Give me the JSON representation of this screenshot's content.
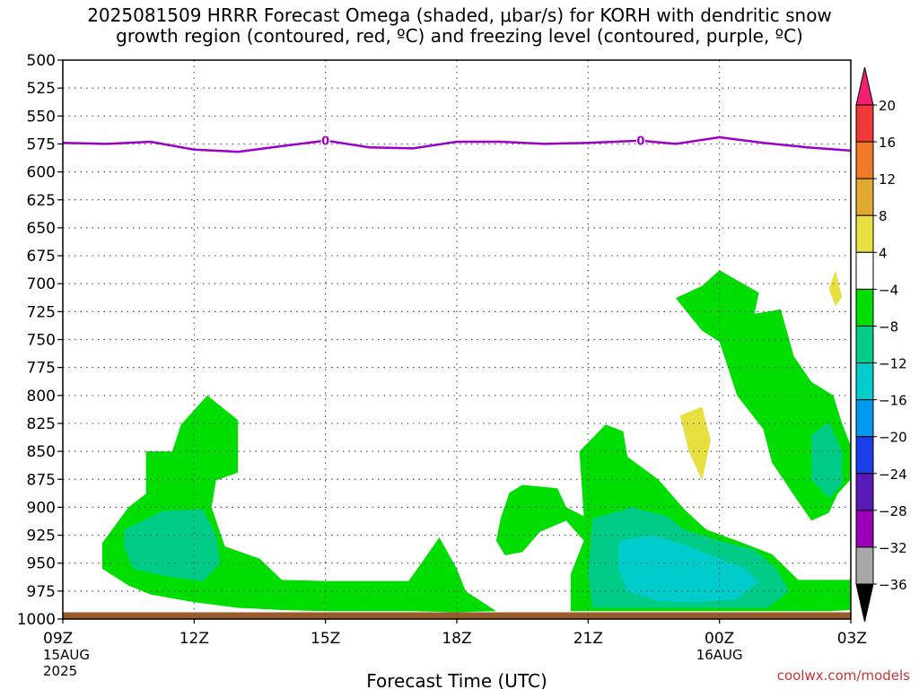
{
  "chart_data": {
    "type": "contour",
    "title_line1": "2025081509 HRRR Forecast Omega (shaded, μbar/s) for KORH with dendritic snow",
    "title_line2": "growth region (contoured, red, ºC) and freezing level (contoured, purple, ºC)",
    "xlabel": "Forecast Time (UTC)",
    "y_axis": {
      "reversed": true,
      "ylim": [
        1000,
        500
      ],
      "ticks": [
        500,
        525,
        550,
        575,
        600,
        625,
        650,
        675,
        700,
        725,
        750,
        775,
        800,
        825,
        850,
        875,
        900,
        925,
        950,
        975,
        1000
      ]
    },
    "x_axis": {
      "range_hours": [
        0,
        18
      ],
      "ticks": [
        {
          "hour": 0,
          "label": "09Z",
          "sub1": "15AUG",
          "sub2": "2025"
        },
        {
          "hour": 3,
          "label": "12Z",
          "sub1": "",
          "sub2": ""
        },
        {
          "hour": 6,
          "label": "15Z",
          "sub1": "",
          "sub2": ""
        },
        {
          "hour": 9,
          "label": "18Z",
          "sub1": "",
          "sub2": ""
        },
        {
          "hour": 12,
          "label": "21Z",
          "sub1": "",
          "sub2": ""
        },
        {
          "hour": 15,
          "label": "00Z",
          "sub1": "16AUG",
          "sub2": ""
        },
        {
          "hour": 18,
          "label": "03Z",
          "sub1": "",
          "sub2": ""
        }
      ]
    },
    "grid": true,
    "colorbar": {
      "labels": [
        20,
        16,
        12,
        8,
        4,
        -4,
        -8,
        -12,
        -16,
        -20,
        -24,
        -28,
        -32,
        -36
      ],
      "colors": [
        "#f02070",
        "#f03a3a",
        "#f07a2a",
        "#e0aa30",
        "#e8e040",
        "#ffffff",
        "#00dd00",
        "#00cc88",
        "#00cccc",
        "#0099ee",
        "#1a3ee8",
        "#5a1ab8",
        "#9a00b8",
        "#a8a8a8",
        "#000000"
      ]
    },
    "freezing_level": {
      "color": "#9a00c8",
      "label": "0",
      "label_hours": [
        6.0,
        13.2
      ],
      "points": [
        [
          0,
          574
        ],
        [
          1.0,
          575
        ],
        [
          2.0,
          573
        ],
        [
          3.0,
          580
        ],
        [
          4.0,
          582
        ],
        [
          5.0,
          577
        ],
        [
          6.0,
          572
        ],
        [
          7.0,
          578
        ],
        [
          8.0,
          579
        ],
        [
          9.0,
          573
        ],
        [
          10.0,
          573
        ],
        [
          11.0,
          575
        ],
        [
          12.0,
          574
        ],
        [
          13.2,
          572
        ],
        [
          14.0,
          575
        ],
        [
          15.0,
          569
        ],
        [
          16.0,
          574
        ],
        [
          17.0,
          578
        ],
        [
          18.0,
          581
        ]
      ]
    },
    "ground": {
      "color": "#9a5a2a",
      "from_pressure": 994,
      "to_pressure": 1000
    },
    "regions": [
      {
        "level": "-4 to -8",
        "color": "#00dd00",
        "points": [
          [
            0.9,
            932
          ],
          [
            1.5,
            900
          ],
          [
            1.9,
            888
          ],
          [
            1.9,
            850
          ],
          [
            2.5,
            850
          ],
          [
            2.7,
            826
          ],
          [
            3.3,
            800
          ],
          [
            4.0,
            822
          ],
          [
            4.0,
            869
          ],
          [
            3.5,
            876
          ],
          [
            3.4,
            900
          ],
          [
            3.7,
            935
          ],
          [
            4.5,
            946
          ],
          [
            5.0,
            965
          ],
          [
            6.0,
            966
          ],
          [
            7.0,
            966
          ],
          [
            7.9,
            966
          ],
          [
            8.1,
            955
          ],
          [
            8.6,
            927
          ],
          [
            9.0,
            955
          ],
          [
            9.2,
            975
          ],
          [
            9.9,
            993
          ],
          [
            9.0,
            994
          ],
          [
            8.0,
            993
          ],
          [
            7.0,
            993
          ],
          [
            6.0,
            993
          ],
          [
            5.0,
            992
          ],
          [
            4.0,
            990
          ],
          [
            3.0,
            985
          ],
          [
            2.0,
            978
          ],
          [
            1.5,
            970
          ],
          [
            0.9,
            955
          ]
        ]
      },
      {
        "level": "-8 to -12",
        "color": "#00cc88",
        "points": [
          [
            1.4,
            920
          ],
          [
            2.3,
            903
          ],
          [
            3.2,
            902
          ],
          [
            3.5,
            925
          ],
          [
            3.6,
            950
          ],
          [
            3.2,
            966
          ],
          [
            2.4,
            962
          ],
          [
            1.6,
            955
          ],
          [
            1.4,
            935
          ]
        ]
      },
      {
        "level": "-4 to -8",
        "color": "#00dd00",
        "points": [
          [
            10.0,
            910
          ],
          [
            10.2,
            887
          ],
          [
            10.5,
            880
          ],
          [
            11.3,
            883
          ],
          [
            11.5,
            900
          ],
          [
            11.9,
            908
          ],
          [
            11.8,
            850
          ],
          [
            12.4,
            826
          ],
          [
            12.8,
            832
          ],
          [
            12.9,
            855
          ],
          [
            13.6,
            875
          ],
          [
            14.2,
            902
          ],
          [
            14.7,
            920
          ],
          [
            15.4,
            930
          ],
          [
            16.2,
            942
          ],
          [
            16.8,
            965
          ],
          [
            18.0,
            965
          ],
          [
            18.0,
            992
          ],
          [
            17.5,
            993
          ],
          [
            16.5,
            993
          ],
          [
            15.0,
            993
          ],
          [
            14.0,
            993
          ],
          [
            13.0,
            993
          ],
          [
            12.0,
            993
          ],
          [
            11.6,
            993
          ],
          [
            11.6,
            960
          ],
          [
            11.9,
            930
          ],
          [
            11.5,
            912
          ],
          [
            10.9,
            922
          ],
          [
            10.5,
            940
          ],
          [
            10.1,
            943
          ],
          [
            9.9,
            930
          ]
        ]
      },
      {
        "level": "-8 to -12",
        "color": "#00cc88",
        "points": [
          [
            12.1,
            910
          ],
          [
            13.0,
            900
          ],
          [
            13.8,
            908
          ],
          [
            14.2,
            920
          ],
          [
            15.0,
            930
          ],
          [
            15.8,
            938
          ],
          [
            16.3,
            955
          ],
          [
            16.6,
            975
          ],
          [
            16.1,
            990
          ],
          [
            15.0,
            990
          ],
          [
            13.5,
            990
          ],
          [
            12.1,
            990
          ],
          [
            12.0,
            960
          ]
        ]
      },
      {
        "level": "-12 to -16",
        "color": "#00cccc",
        "points": [
          [
            12.7,
            930
          ],
          [
            13.5,
            925
          ],
          [
            14.3,
            935
          ],
          [
            15.0,
            946
          ],
          [
            15.6,
            955
          ],
          [
            15.9,
            967
          ],
          [
            15.4,
            982
          ],
          [
            14.5,
            985
          ],
          [
            13.6,
            984
          ],
          [
            12.9,
            975
          ],
          [
            12.7,
            955
          ]
        ]
      },
      {
        "level": "-4 to -8",
        "color": "#00dd00",
        "points": [
          [
            14.6,
            702
          ],
          [
            15.0,
            688
          ],
          [
            15.9,
            708
          ],
          [
            15.8,
            727
          ],
          [
            16.4,
            723
          ],
          [
            16.7,
            765
          ],
          [
            17.1,
            788
          ],
          [
            17.6,
            800
          ],
          [
            17.8,
            825
          ],
          [
            18.0,
            845
          ],
          [
            18.0,
            875
          ],
          [
            17.7,
            888
          ],
          [
            17.5,
            905
          ],
          [
            17.1,
            912
          ],
          [
            16.8,
            895
          ],
          [
            16.2,
            860
          ],
          [
            16.0,
            830
          ],
          [
            15.4,
            800
          ],
          [
            15.0,
            752
          ],
          [
            14.6,
            742
          ],
          [
            14.0,
            713
          ]
        ]
      },
      {
        "level": "-8 to -12",
        "color": "#00cc88",
        "points": [
          [
            17.1,
            835
          ],
          [
            17.5,
            824
          ],
          [
            17.8,
            850
          ],
          [
            17.8,
            880
          ],
          [
            17.5,
            892
          ],
          [
            17.1,
            875
          ]
        ]
      },
      {
        "level": "4 to 8",
        "color": "#e8e040",
        "points": [
          [
            14.1,
            818
          ],
          [
            14.6,
            810
          ],
          [
            14.8,
            840
          ],
          [
            14.6,
            876
          ],
          [
            14.3,
            850
          ]
        ]
      },
      {
        "level": "4 to 8",
        "color": "#e8e040",
        "points": [
          [
            17.5,
            705
          ],
          [
            17.65,
            688
          ],
          [
            17.8,
            712
          ],
          [
            17.65,
            720
          ]
        ]
      }
    ],
    "credit": "coolwx.com/models"
  }
}
